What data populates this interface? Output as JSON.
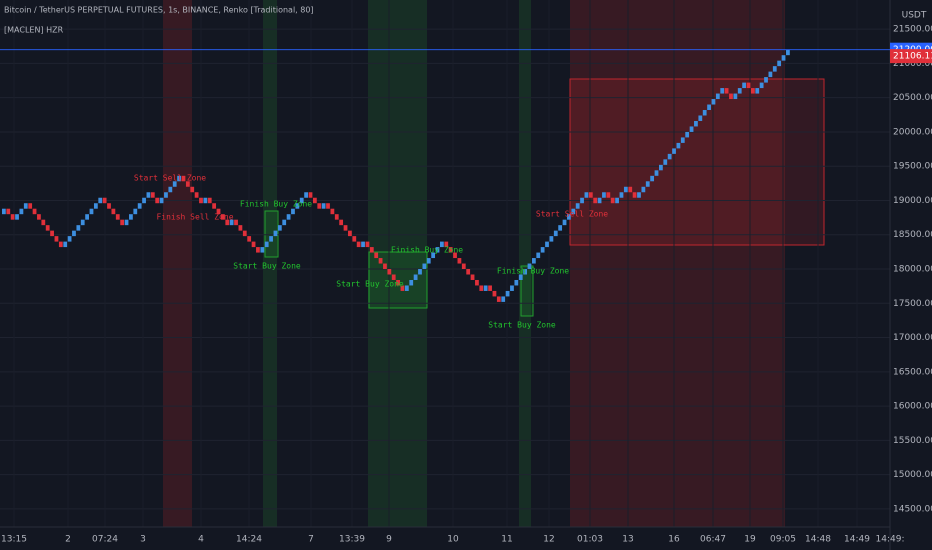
{
  "chart_data": {
    "type": "renko",
    "title": "Bitcoin / TetherUS PERPETUAL FUTURES, 1s, BINANCE, Renko [Traditional, 80]",
    "indicator": "[MACLEN] HZR",
    "currency": "USDT",
    "up_color": "#3d8fe0",
    "down_color": "#e0303a",
    "values": [
      18880,
      18800,
      18720,
      18800,
      18880,
      18960,
      18880,
      18800,
      18720,
      18640,
      18560,
      18480,
      18400,
      18320,
      18400,
      18480,
      18560,
      18640,
      18720,
      18800,
      18880,
      18960,
      19040,
      18960,
      18880,
      18800,
      18720,
      18640,
      18720,
      18800,
      18880,
      18960,
      19040,
      19120,
      19040,
      18960,
      19040,
      19120,
      19200,
      19280,
      19360,
      19280,
      19200,
      19120,
      19040,
      18960,
      19040,
      18960,
      18880,
      18800,
      18720,
      18640,
      18720,
      18640,
      18560,
      18480,
      18400,
      18320,
      18240,
      18320,
      18400,
      18480,
      18560,
      18640,
      18720,
      18800,
      18880,
      18960,
      19040,
      19120,
      19040,
      18960,
      18880,
      18960,
      18880,
      18800,
      18720,
      18640,
      18560,
      18480,
      18400,
      18320,
      18400,
      18320,
      18240,
      18160,
      18080,
      18000,
      17920,
      17840,
      17760,
      17680,
      17760,
      17840,
      17920,
      18000,
      18080,
      18160,
      18240,
      18320,
      18400,
      18320,
      18240,
      18160,
      18080,
      18000,
      17920,
      17840,
      17760,
      17680,
      17760,
      17680,
      17600,
      17520,
      17600,
      17680,
      17760,
      17840,
      17920,
      18000,
      18080,
      18160,
      18240,
      18320,
      18400,
      18480,
      18560,
      18640,
      18720,
      18800,
      18880,
      18960,
      19040,
      19120,
      19040,
      18960,
      19040,
      19120,
      19040,
      18960,
      19040,
      19120,
      19200,
      19120,
      19040,
      19120,
      19200,
      19280,
      19360,
      19440,
      19520,
      19600,
      19680,
      19760,
      19840,
      19920,
      20000,
      20080,
      20160,
      20240,
      20320,
      20400,
      20480,
      20560,
      20640,
      20560,
      20480,
      20560,
      20640,
      20720,
      20640,
      20560,
      20640,
      20720,
      20800,
      20880,
      20960,
      21040,
      21120,
      21200
    ],
    "ylim": [
      14236,
      21925
    ],
    "yticks": [
      {
        "value": 14500,
        "label": "14500.00"
      },
      {
        "value": 15000,
        "label": "15000.00"
      },
      {
        "value": 15500,
        "label": "15500.00"
      },
      {
        "value": 16000,
        "label": "16000.00"
      },
      {
        "value": 16500,
        "label": "16500.00"
      },
      {
        "value": 17000,
        "label": "17000.00"
      },
      {
        "value": 17500,
        "label": "17500.00"
      },
      {
        "value": 18000,
        "label": "18000.00"
      },
      {
        "value": 18500,
        "label": "18500.00"
      },
      {
        "value": 19000,
        "label": "19000.00"
      },
      {
        "value": 19500,
        "label": "19500.00"
      },
      {
        "value": 20000,
        "label": "20000.00"
      },
      {
        "value": 20500,
        "label": "20500.00"
      },
      {
        "value": 21000,
        "label": "21000.00"
      },
      {
        "value": 21500,
        "label": "21500.00"
      }
    ],
    "last_price": {
      "value": 21200,
      "label": "21200.00"
    },
    "current_price": {
      "value": 21106.11,
      "label": "21106.11"
    },
    "x_labels": [
      "13:15",
      "2",
      "07:24",
      "3",
      "4",
      "14:24",
      "7",
      "13:39",
      "9",
      "10",
      "11",
      "12",
      "01:03",
      "13",
      "16",
      "06:47",
      "19",
      "09:05",
      "14:48",
      "14:49",
      "14:49:"
    ],
    "annotations": [
      {
        "text": "Start  Sell Zone",
        "color": "#e0303a"
      },
      {
        "text": "Finish Sell Zone",
        "color": "#e0303a"
      },
      {
        "text": "Finish Buy Zone",
        "color": "#22c32e"
      },
      {
        "text": "Start  Buy Zone",
        "color": "#22c32e"
      },
      {
        "text": "Start  Buy Zone",
        "color": "#22c32e"
      },
      {
        "text": "Finish Buy Zone",
        "color": "#22c32e"
      },
      {
        "text": "Finish Buy Zone",
        "color": "#22c32e"
      },
      {
        "text": "Start  Buy Zone",
        "color": "#22c32e"
      },
      {
        "text": "Start  Sell Zone",
        "color": "#e0303a"
      }
    ],
    "grid": true
  }
}
